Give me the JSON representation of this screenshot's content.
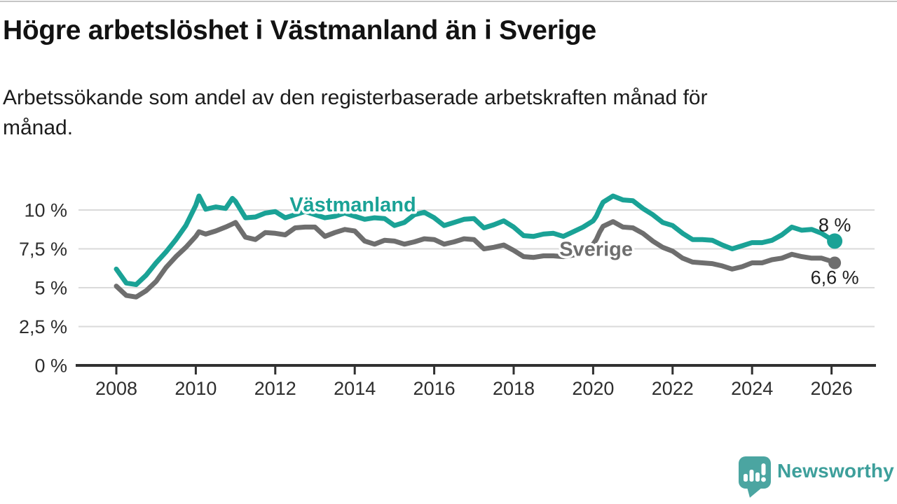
{
  "header": {
    "title": "Högre arbetslöshet i Västmanland än i Sverige",
    "subtitle_line1": "Arbetssökande som andel av den registerbaserade arbetskraften månad för",
    "subtitle_line2": "månad."
  },
  "chart_data": {
    "type": "line",
    "title": "Högre arbetslöshet i Västmanland än i Sverige",
    "xlabel": "",
    "ylabel": "",
    "x_unit": "year",
    "y_unit": "%",
    "grid": true,
    "x_range": [
      2007.0,
      2027.1
    ],
    "ylim": [
      0,
      11.6
    ],
    "style": {
      "grid_color": "#dadada",
      "axis_color": "#303030",
      "tick_label_color": "#2e2e2e",
      "end_label_color": "#1f1f1f"
    },
    "y_ticks": [
      {
        "value": 0,
        "label": "0 %"
      },
      {
        "value": 2.5,
        "label": "2,5 %"
      },
      {
        "value": 5,
        "label": "5 %"
      },
      {
        "value": 7.5,
        "label": "7,5 %"
      },
      {
        "value": 10,
        "label": "10 %"
      }
    ],
    "x_ticks": [
      {
        "value": 2008,
        "label": "2008"
      },
      {
        "value": 2010,
        "label": "2010"
      },
      {
        "value": 2012,
        "label": "2012"
      },
      {
        "value": 2014,
        "label": "2014"
      },
      {
        "value": 2016,
        "label": "2016"
      },
      {
        "value": 2018,
        "label": "2018"
      },
      {
        "value": 2020,
        "label": "2020"
      },
      {
        "value": 2022,
        "label": "2022"
      },
      {
        "value": 2024,
        "label": "2024"
      },
      {
        "value": 2026,
        "label": "2026"
      }
    ],
    "x": [
      2008.0,
      2008.25,
      2008.5,
      2008.75,
      2009.0,
      2009.25,
      2009.5,
      2009.75,
      2010.0,
      2010.08,
      2010.25,
      2010.5,
      2010.75,
      2010.92,
      2011.0,
      2011.25,
      2011.5,
      2011.75,
      2012.0,
      2012.25,
      2012.5,
      2012.75,
      2013.0,
      2013.25,
      2013.5,
      2013.75,
      2014.0,
      2014.25,
      2014.5,
      2014.75,
      2015.0,
      2015.25,
      2015.5,
      2015.75,
      2016.0,
      2016.25,
      2016.5,
      2016.75,
      2017.0,
      2017.25,
      2017.5,
      2017.75,
      2018.0,
      2018.25,
      2018.5,
      2018.75,
      2019.0,
      2019.25,
      2019.5,
      2019.75,
      2020.0,
      2020.08,
      2020.17,
      2020.25,
      2020.5,
      2020.75,
      2021.0,
      2021.25,
      2021.5,
      2021.75,
      2022.0,
      2022.25,
      2022.5,
      2022.75,
      2023.0,
      2023.25,
      2023.5,
      2023.75,
      2024.0,
      2024.25,
      2024.5,
      2024.75,
      2025.0,
      2025.25,
      2025.5,
      2025.75,
      2026.0,
      2026.08
    ],
    "series": [
      {
        "name": "Västmanland",
        "color": "#1aa296",
        "end_label": "8 %",
        "end_label_side": "above",
        "end_dot_radius": 11,
        "label_anchor": {
          "x": 2012.36,
          "y_pct": 9.9
        },
        "values": [
          6.2,
          5.3,
          5.2,
          5.8,
          6.6,
          7.3,
          8.1,
          9.0,
          10.3,
          10.9,
          10.05,
          10.2,
          10.1,
          10.75,
          10.55,
          9.5,
          9.55,
          9.8,
          9.9,
          9.5,
          9.7,
          9.9,
          9.7,
          9.5,
          9.6,
          9.8,
          9.6,
          9.4,
          9.5,
          9.45,
          9.0,
          9.2,
          9.7,
          9.85,
          9.5,
          9.0,
          9.2,
          9.4,
          9.45,
          8.85,
          9.05,
          9.3,
          8.9,
          8.35,
          8.3,
          8.45,
          8.5,
          8.3,
          8.6,
          8.9,
          9.3,
          9.6,
          10.1,
          10.5,
          10.9,
          10.65,
          10.6,
          10.1,
          9.7,
          9.2,
          9.0,
          8.5,
          8.1,
          8.1,
          8.05,
          7.75,
          7.5,
          7.7,
          7.9,
          7.9,
          8.05,
          8.4,
          8.9,
          8.7,
          8.75,
          8.5,
          8.1,
          8.0
        ]
      },
      {
        "name": "Sverige",
        "color": "#6e6e6e",
        "end_label": "6,6 %",
        "end_label_side": "below",
        "end_dot_radius": 9,
        "label_anchor": {
          "x": 2019.15,
          "y_pct": 7.05
        },
        "values": [
          5.1,
          4.5,
          4.4,
          4.8,
          5.4,
          6.3,
          7.0,
          7.6,
          8.3,
          8.6,
          8.45,
          8.65,
          8.9,
          9.1,
          9.2,
          8.25,
          8.1,
          8.55,
          8.5,
          8.4,
          8.85,
          8.9,
          8.9,
          8.3,
          8.55,
          8.75,
          8.65,
          8.0,
          7.8,
          8.05,
          8.0,
          7.8,
          7.95,
          8.15,
          8.1,
          7.8,
          7.95,
          8.15,
          8.1,
          7.5,
          7.6,
          7.75,
          7.4,
          7.0,
          6.95,
          7.05,
          7.05,
          7.0,
          7.1,
          7.3,
          7.8,
          8.1,
          8.6,
          8.95,
          9.25,
          8.9,
          8.85,
          8.5,
          8.0,
          7.6,
          7.35,
          6.9,
          6.65,
          6.6,
          6.55,
          6.4,
          6.2,
          6.35,
          6.6,
          6.6,
          6.8,
          6.9,
          7.15,
          7.0,
          6.9,
          6.9,
          6.7,
          6.6
        ]
      }
    ]
  },
  "footer": {
    "brand_name": "Newsworthy",
    "brand_color": "#3d9f9b",
    "logo_icon": "speech-bubble-bar-chart-exclamation-icon"
  }
}
